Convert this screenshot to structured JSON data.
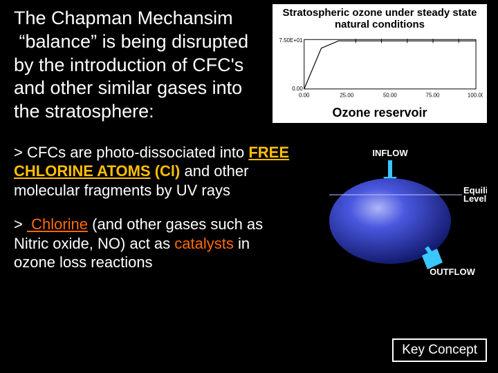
{
  "main_text": "The Chapman Mechansim  “balance” is being disrupted by the introduction of CFC's and other similar gases into the stratosphere:",
  "chart": {
    "title": "Stratospheric ozone under steady state natural conditions",
    "caption": "Ozone reservoir",
    "type": "line",
    "x_ticks": [
      "0.00",
      "25.00",
      "50.00",
      "75.00",
      "100.00"
    ],
    "y_ticks": [
      "0.00",
      "7.50E+01"
    ],
    "xlim": [
      0,
      100
    ],
    "ylim": [
      0,
      75
    ],
    "series": {
      "x": [
        0,
        10,
        20,
        100
      ],
      "y": [
        0,
        62,
        73,
        73
      ]
    },
    "line_color": "#000000",
    "tick_font_size": 8,
    "background": "#ffffff"
  },
  "reservoir": {
    "inflow_label": "INFLOW",
    "outflow_label": "OUTFLOW",
    "equil_label": "Equilibrium Level",
    "sphere_fill": "#2a3bd6",
    "sphere_highlight": "#7a86e8",
    "sphere_shadow": "#1a2480",
    "arrow_color": "#3ac6ff",
    "background": "#000000"
  },
  "bullet1": {
    "prefix": "> ",
    "t1": "CFCs are photo-dissociated into ",
    "hl": "FREE CHLORINE ATOMS",
    "paren": " (Cl) ",
    "t2": "and other molecular fragments by UV rays"
  },
  "bullet2": {
    "prefix": "> ",
    "hl1": " Chlorine",
    "t1": " (and other gases such as Nitric oxide, NO) act as ",
    "hl2": "catalysts",
    "t2": " in ozone loss reactions"
  },
  "key_concept": "Key Concept"
}
